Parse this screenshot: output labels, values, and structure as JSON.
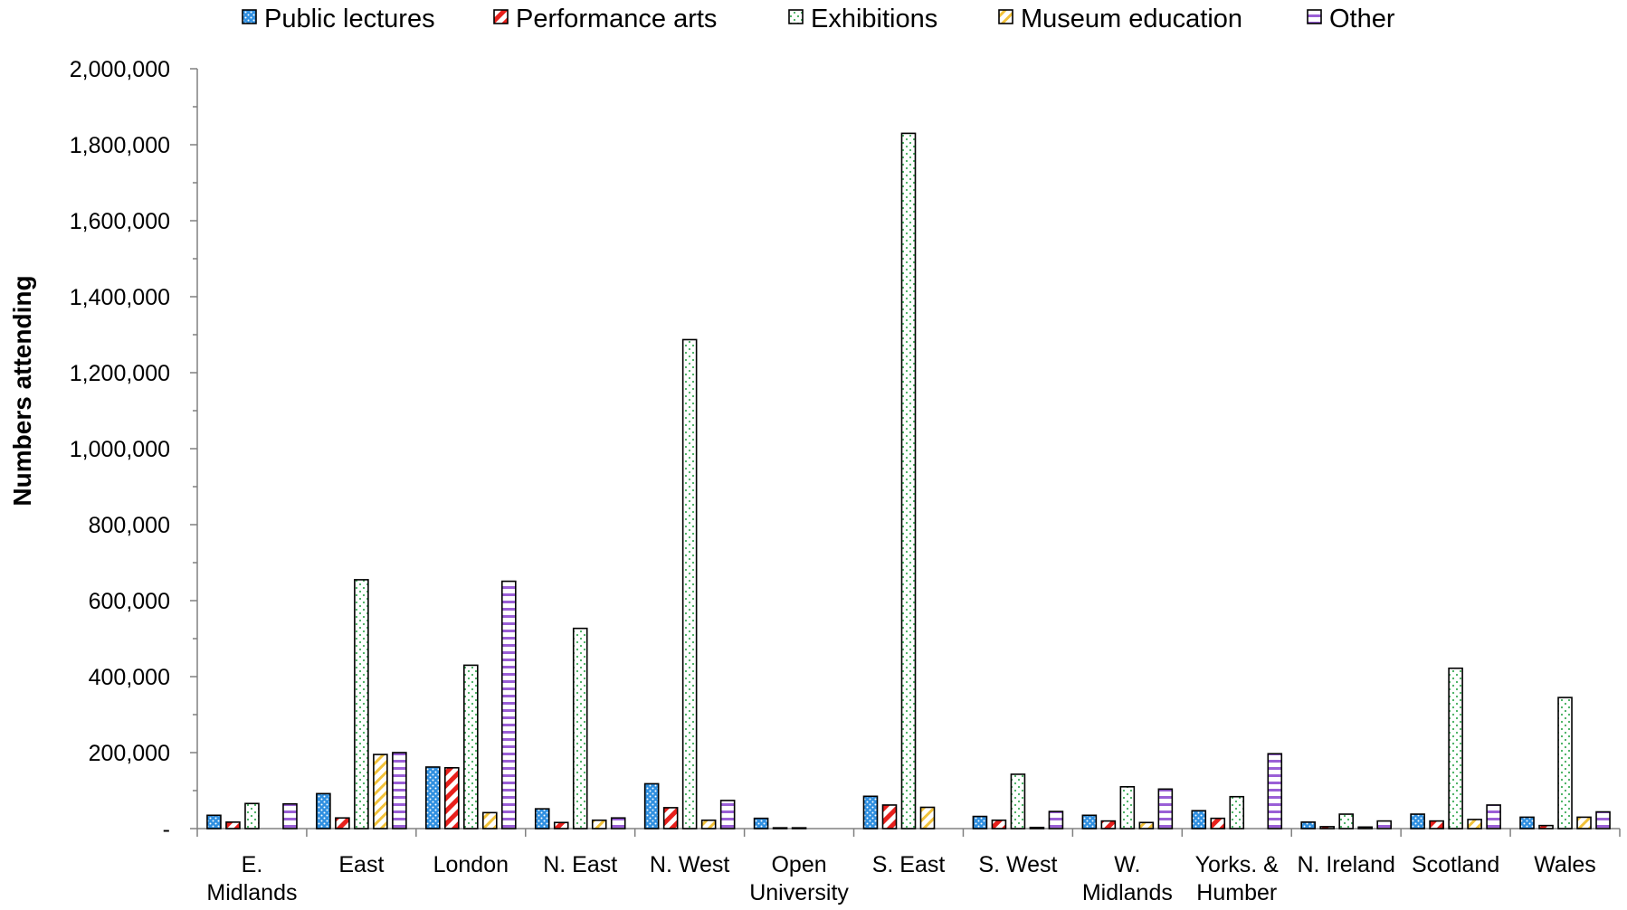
{
  "chart_data": {
    "type": "bar",
    "title": "",
    "xlabel": "",
    "ylabel": "Numbers attending",
    "ylim": [
      0,
      2000000
    ],
    "yticks": [
      0,
      200000,
      400000,
      600000,
      800000,
      1000000,
      1200000,
      1400000,
      1600000,
      1800000,
      2000000
    ],
    "ytick_labels": [
      "-",
      "200,000",
      "400,000",
      "600,000",
      "800,000",
      "1,000,000",
      "1,200,000",
      "1,400,000",
      "1,600,000",
      "1,800,000",
      "2,000,000"
    ],
    "grid": false,
    "legend_position": "top",
    "categories": [
      [
        "E.",
        "Midlands"
      ],
      [
        "East"
      ],
      [
        "London"
      ],
      [
        "N. East"
      ],
      [
        "N. West"
      ],
      [
        "Open",
        "University"
      ],
      [
        "S. East"
      ],
      [
        "S. West"
      ],
      [
        "W.",
        "Midlands"
      ],
      [
        "Yorks. &",
        "Humber"
      ],
      [
        "N. Ireland"
      ],
      [
        "Scotland"
      ],
      [
        "Wales"
      ]
    ],
    "series": [
      {
        "name": "Public lectures",
        "color": "#2f8fe0",
        "pattern": "dots",
        "values": [
          35000,
          92000,
          162000,
          52000,
          118000,
          27000,
          85000,
          32000,
          35000,
          47000,
          17000,
          38000,
          30000
        ]
      },
      {
        "name": "Performance arts",
        "color": "#e8201c",
        "pattern": "diagonal",
        "values": [
          17000,
          28000,
          160000,
          16000,
          55000,
          2000,
          62000,
          22000,
          20000,
          27000,
          5000,
          20000,
          8000
        ]
      },
      {
        "name": "Exhibitions",
        "color": "#3fae5a",
        "pattern": "sparse-dots",
        "values": [
          66000,
          655000,
          430000,
          527000,
          1287000,
          2000,
          1830000,
          143000,
          110000,
          84000,
          38000,
          422000,
          345000
        ]
      },
      {
        "name": "Museum education",
        "color": "#f2c23a",
        "pattern": "diagonal-light",
        "values": [
          0,
          195000,
          42000,
          22000,
          22000,
          0,
          56000,
          3000,
          16000,
          0,
          4000,
          24000,
          30000
        ]
      },
      {
        "name": "Other",
        "color": "#9a5fd6",
        "pattern": "horizontal",
        "values": [
          65000,
          200000,
          651000,
          28000,
          74000,
          0,
          0,
          45000,
          104000,
          197000,
          20000,
          62000,
          44000
        ]
      }
    ]
  }
}
